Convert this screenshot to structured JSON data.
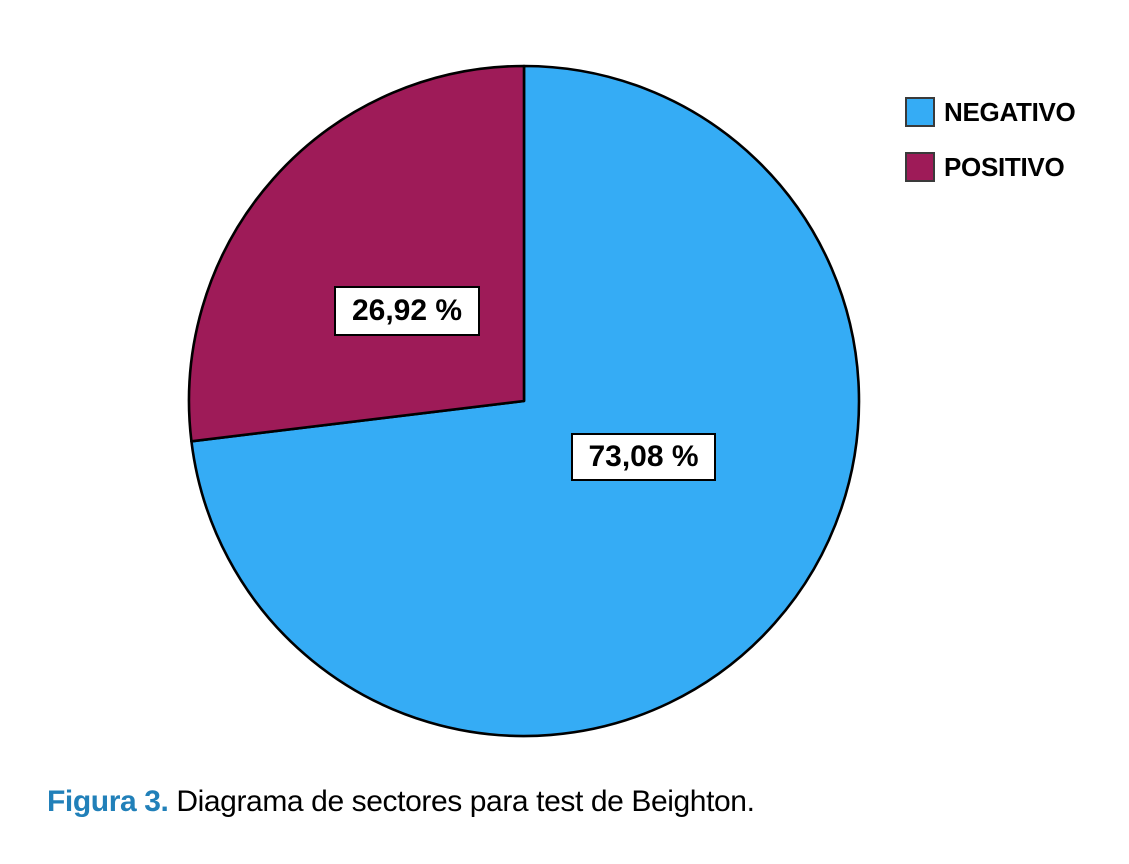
{
  "figure": {
    "caption_prefix": "Figura 3.",
    "caption_text": " Diagrama de sectores para test de Beighton."
  },
  "legend": {
    "position": "top-right",
    "items": [
      {
        "label": "NEGATIVO",
        "color": "#35acf5"
      },
      {
        "label": "POSITIVO",
        "color": "#9e1b58"
      }
    ]
  },
  "chart_data": {
    "type": "pie",
    "title": "",
    "categories": [
      "NEGATIVO",
      "POSITIVO"
    ],
    "values": [
      73.08,
      26.92
    ],
    "slices": [
      {
        "name": "NEGATIVO",
        "value": 73.08,
        "display_label": "73,08 %",
        "color": "#35acf5"
      },
      {
        "name": "POSITIVO",
        "value": 26.92,
        "display_label": "26,92 %",
        "color": "#9e1b58"
      }
    ],
    "start_angle_deg": 0,
    "direction": "clockwise",
    "outline_color": "#000000",
    "outline_width": 2.6,
    "legend_position": "top-right",
    "background": "#ffffff"
  },
  "colors": {
    "caption_accent": "#2180b9",
    "legend_swatch_border": "#3a3a3a",
    "label_box_border": "#000000",
    "label_box_fill": "#ffffff"
  }
}
